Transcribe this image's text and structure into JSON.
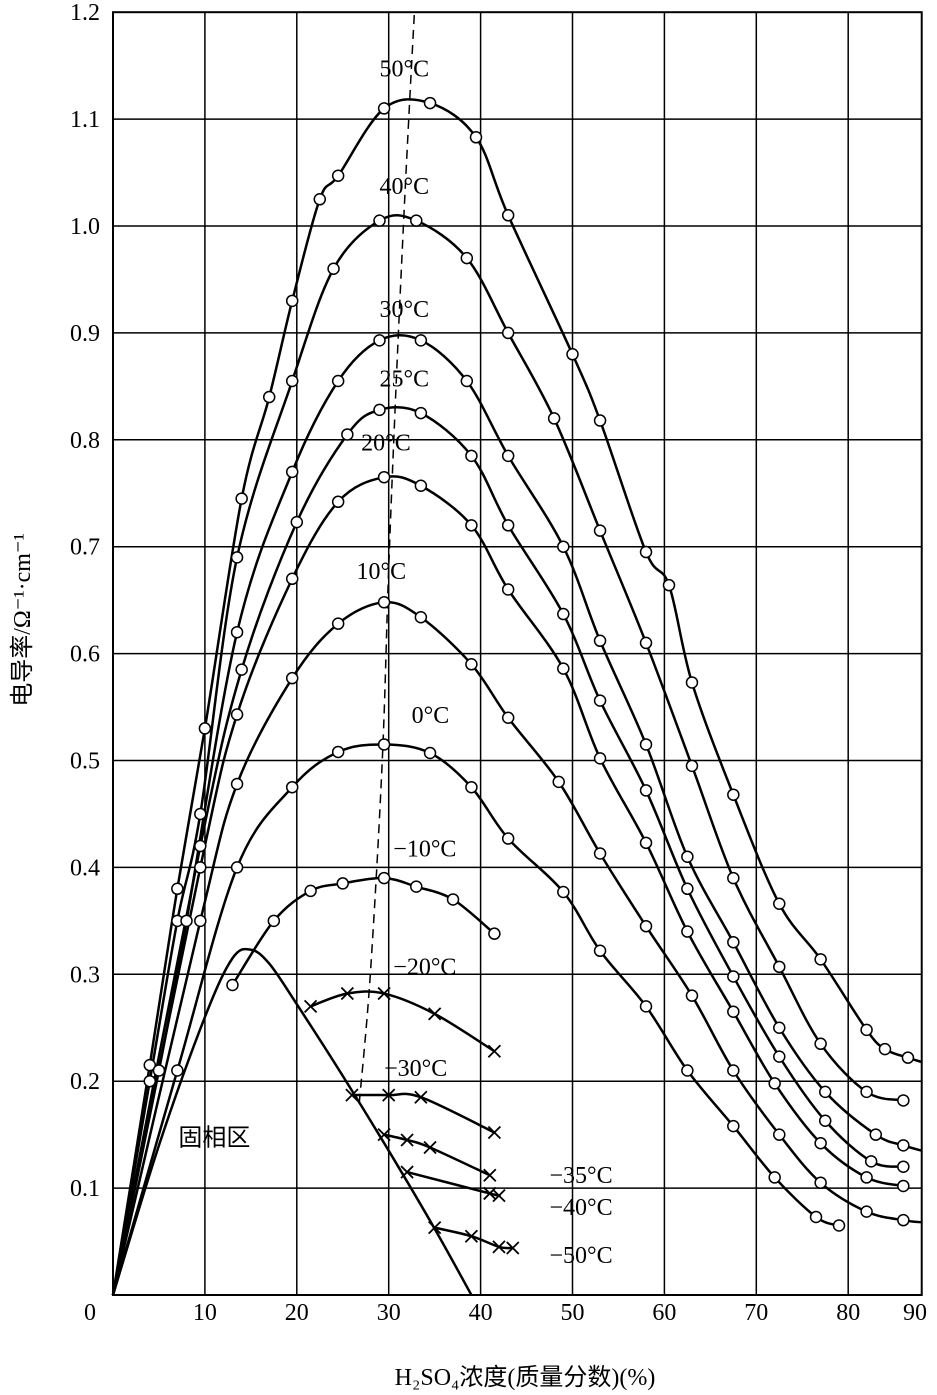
{
  "chart_data": {
    "type": "line",
    "title": "",
    "xlabel": "H₂SO₄浓度(质量分数)(%)",
    "ylabel": "电导率/Ω⁻¹·cm⁻¹",
    "xlim": [
      0,
      90
    ],
    "ylim": [
      0,
      1.2
    ],
    "grid": true,
    "x_ticks": [
      "0",
      "10",
      "20",
      "30",
      "40",
      "50",
      "60",
      "70",
      "80",
      "90"
    ],
    "y_ticks": [
      "0.1",
      "0.2",
      "0.3",
      "0.4",
      "0.5",
      "0.6",
      "0.7",
      "0.8",
      "0.9",
      "1.0",
      "1.1",
      "1.2"
    ],
    "region_label": {
      "text": "固相区",
      "x": 18,
      "y": 0.14
    },
    "series": [
      {
        "name": "50°C",
        "marker": "circle",
        "label_at": [
          29,
          1.14
        ],
        "points": [
          [
            0,
            0
          ],
          [
            4,
            0.215
          ],
          [
            7,
            0.38
          ],
          [
            10,
            0.53
          ],
          [
            14,
            0.745
          ],
          [
            17,
            0.84
          ],
          [
            19.5,
            0.93
          ],
          [
            22.5,
            1.025
          ],
          [
            24.5,
            1.047
          ],
          [
            29.5,
            1.11
          ],
          [
            34.5,
            1.115
          ],
          [
            39.5,
            1.083
          ],
          [
            43,
            1.01
          ],
          [
            50,
            0.88
          ],
          [
            53,
            0.818
          ],
          [
            58,
            0.695
          ],
          [
            60.5,
            0.664
          ],
          [
            63,
            0.573
          ],
          [
            67.5,
            0.468
          ],
          [
            72.5,
            0.366
          ],
          [
            77,
            0.314
          ],
          [
            82,
            0.248
          ],
          [
            84,
            0.23
          ],
          [
            86.5,
            0.222
          ],
          [
            88,
            0.218
          ]
        ]
      },
      {
        "name": "40°C",
        "marker": "circle",
        "label_at": [
          29,
          1.03
        ],
        "points": [
          [
            0,
            0
          ],
          [
            4,
            0.2
          ],
          [
            7,
            0.35
          ],
          [
            9.5,
            0.45
          ],
          [
            13.5,
            0.69
          ],
          [
            19.5,
            0.855
          ],
          [
            24,
            0.96
          ],
          [
            29,
            1.005
          ],
          [
            33,
            1.005
          ],
          [
            38.5,
            0.97
          ],
          [
            43,
            0.9
          ],
          [
            48,
            0.82
          ],
          [
            53,
            0.715
          ],
          [
            58,
            0.61
          ],
          [
            63,
            0.495
          ],
          [
            67.5,
            0.39
          ],
          [
            72.5,
            0.307
          ],
          [
            77,
            0.235
          ],
          [
            82,
            0.19
          ],
          [
            86,
            0.182
          ]
        ]
      },
      {
        "name": "30°C",
        "marker": "circle",
        "label_at": [
          29,
          0.915
        ],
        "points": [
          [
            0,
            0
          ],
          [
            5,
            0.21
          ],
          [
            8,
            0.35
          ],
          [
            13.5,
            0.62
          ],
          [
            19.5,
            0.77
          ],
          [
            24.5,
            0.855
          ],
          [
            29,
            0.893
          ],
          [
            33.5,
            0.893
          ],
          [
            38.5,
            0.855
          ],
          [
            43,
            0.785
          ],
          [
            49,
            0.7
          ],
          [
            53,
            0.612
          ],
          [
            58,
            0.515
          ],
          [
            62.5,
            0.41
          ],
          [
            67.5,
            0.33
          ],
          [
            72.5,
            0.25
          ],
          [
            77.5,
            0.19
          ],
          [
            83,
            0.15
          ],
          [
            86,
            0.14
          ],
          [
            88,
            0.135
          ]
        ]
      },
      {
        "name": "25°C",
        "marker": "circle",
        "label_at": [
          29,
          0.85
        ],
        "points": [
          [
            0,
            0
          ],
          [
            9.5,
            0.42
          ],
          [
            14,
            0.585
          ],
          [
            20,
            0.723
          ],
          [
            25.5,
            0.805
          ],
          [
            29,
            0.828
          ],
          [
            33.5,
            0.825
          ],
          [
            39,
            0.785
          ],
          [
            43,
            0.72
          ],
          [
            49,
            0.637
          ],
          [
            53,
            0.556
          ],
          [
            58,
            0.472
          ],
          [
            62.5,
            0.38
          ],
          [
            67.5,
            0.298
          ],
          [
            72.5,
            0.223
          ],
          [
            77.5,
            0.163
          ],
          [
            82.5,
            0.125
          ],
          [
            86,
            0.12
          ]
        ]
      },
      {
        "name": "20°C",
        "marker": "circle",
        "label_at": [
          27,
          0.79
        ],
        "points": [
          [
            0,
            0
          ],
          [
            9.5,
            0.4
          ],
          [
            13.5,
            0.543
          ],
          [
            19.5,
            0.67
          ],
          [
            24.5,
            0.742
          ],
          [
            29.5,
            0.765
          ],
          [
            33.5,
            0.757
          ],
          [
            39,
            0.72
          ],
          [
            43,
            0.66
          ],
          [
            49,
            0.586
          ],
          [
            53,
            0.502
          ],
          [
            58,
            0.423
          ],
          [
            62.5,
            0.34
          ],
          [
            67.5,
            0.265
          ],
          [
            72,
            0.198
          ],
          [
            77,
            0.142
          ],
          [
            82,
            0.11
          ],
          [
            86,
            0.102
          ]
        ]
      },
      {
        "name": "10°C",
        "marker": "circle",
        "label_at": [
          26.5,
          0.67
        ],
        "points": [
          [
            0,
            0
          ],
          [
            9.5,
            0.35
          ],
          [
            13.5,
            0.478
          ],
          [
            19.5,
            0.577
          ],
          [
            24.5,
            0.628
          ],
          [
            29.5,
            0.648
          ],
          [
            33.5,
            0.634
          ],
          [
            39,
            0.59
          ],
          [
            43,
            0.54
          ],
          [
            48.5,
            0.48
          ],
          [
            53,
            0.413
          ],
          [
            58,
            0.345
          ],
          [
            63,
            0.28
          ],
          [
            67.5,
            0.21
          ],
          [
            72.5,
            0.15
          ],
          [
            77,
            0.105
          ],
          [
            82,
            0.078
          ],
          [
            86,
            0.07
          ],
          [
            88,
            0.068
          ]
        ]
      },
      {
        "name": "0°C",
        "marker": "circle",
        "label_at": [
          32.5,
          0.535
        ],
        "points": [
          [
            0,
            0
          ],
          [
            7,
            0.21
          ],
          [
            13.5,
            0.4
          ],
          [
            19.5,
            0.475
          ],
          [
            24.5,
            0.508
          ],
          [
            29.5,
            0.515
          ],
          [
            34.5,
            0.507
          ],
          [
            39,
            0.475
          ],
          [
            43,
            0.427
          ],
          [
            49,
            0.377
          ],
          [
            53,
            0.322
          ],
          [
            58,
            0.27
          ],
          [
            62.5,
            0.21
          ],
          [
            67.5,
            0.158
          ],
          [
            72,
            0.11
          ],
          [
            76.5,
            0.073
          ],
          [
            79,
            0.065
          ]
        ]
      },
      {
        "name": "−10°C",
        "marker": "circle",
        "label_at": [
          30.5,
          0.41
        ],
        "points": [
          [
            13,
            0.29
          ],
          [
            17.5,
            0.35
          ],
          [
            21.5,
            0.378
          ],
          [
            25,
            0.385
          ],
          [
            29.5,
            0.39
          ],
          [
            33,
            0.382
          ],
          [
            37,
            0.37
          ],
          [
            41.5,
            0.338
          ]
        ]
      },
      {
        "name": "−20°C",
        "marker": "x",
        "label_at": [
          30.5,
          0.3
        ],
        "points": [
          [
            21.5,
            0.27
          ],
          [
            25.5,
            0.282
          ],
          [
            29.5,
            0.282
          ],
          [
            35,
            0.263
          ],
          [
            41.5,
            0.228
          ]
        ]
      },
      {
        "name": "−30°C",
        "marker": "x",
        "label_at": [
          29.5,
          0.205
        ],
        "points": [
          [
            26,
            0.187
          ],
          [
            30,
            0.187
          ],
          [
            33.5,
            0.185
          ],
          [
            41.5,
            0.152
          ]
        ]
      },
      {
        "name": "−35°C",
        "marker": "x",
        "label_at": [
          47.5,
          0.105
        ],
        "points": [
          [
            29.5,
            0.15
          ],
          [
            32,
            0.145
          ],
          [
            34.5,
            0.138
          ],
          [
            41,
            0.112
          ]
        ]
      },
      {
        "name": "−40°C",
        "marker": "x",
        "label_at": [
          47.5,
          0.075
        ],
        "points": [
          [
            32,
            0.115
          ],
          [
            41,
            0.095
          ],
          [
            42,
            0.093
          ]
        ]
      },
      {
        "name": "−50°C",
        "marker": "x",
        "label_at": [
          47.5,
          0.03
        ],
        "points": [
          [
            35,
            0.063
          ],
          [
            39,
            0.055
          ],
          [
            42,
            0.045
          ],
          [
            43.5,
            0.044
          ]
        ]
      }
    ],
    "solid_boundary": [
      [
        0,
        0
      ],
      [
        5,
        0.14
      ],
      [
        10,
        0.26
      ],
      [
        13,
        0.315
      ],
      [
        15,
        0.323
      ],
      [
        17,
        0.31
      ],
      [
        20,
        0.272
      ],
      [
        25,
        0.205
      ],
      [
        30,
        0.135
      ],
      [
        35,
        0.062
      ],
      [
        39,
        0
      ]
    ],
    "max_locus_dashed": [
      [
        26.8,
        0.18
      ],
      [
        28,
        0.3
      ],
      [
        29.3,
        0.5
      ],
      [
        30,
        0.68
      ],
      [
        30.8,
        0.85
      ],
      [
        31.6,
        1.0
      ],
      [
        32.3,
        1.12
      ],
      [
        32.8,
        1.2
      ]
    ]
  }
}
